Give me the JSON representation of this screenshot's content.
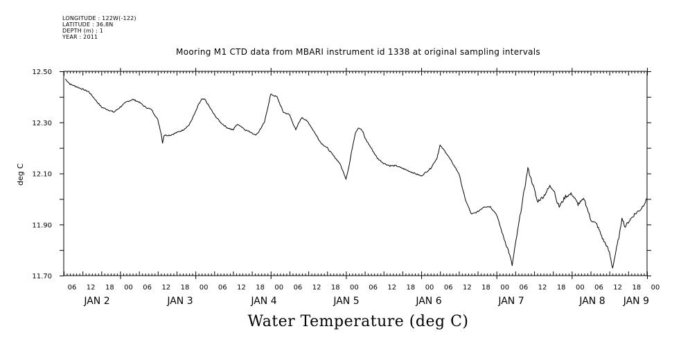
{
  "header": {
    "longitude": "LONGITUDE : 122W(-122)",
    "latitude": "LATITUDE : 36.8N",
    "depth": "DEPTH (m) : 1",
    "year": "YEAR : 2011"
  },
  "chart_data": {
    "type": "line",
    "title": "Mooring M1 CTD data from MBARI instrument id 1338 at original sampling intervals",
    "xlabel": "Water Temperature (deg C)",
    "ylabel": "deg C",
    "ylim": [
      11.7,
      12.5
    ],
    "yticks": [
      "12.50",
      "12.30",
      "12.10",
      "11.90",
      "11.70"
    ],
    "xlim_hours": [
      0,
      186
    ],
    "hour_ticks": [
      "06",
      "12",
      "18",
      "00",
      "06",
      "12",
      "18",
      "00",
      "06",
      "12",
      "18",
      "00",
      "06",
      "12",
      "18",
      "00",
      "06",
      "12",
      "18",
      "00",
      "06",
      "12",
      "18",
      "00",
      "06",
      "12",
      "18",
      "00",
      "06",
      "12",
      "18",
      "00"
    ],
    "day_labels": [
      "JAN 2",
      "JAN 3",
      "JAN 4",
      "JAN 5",
      "JAN 6",
      "JAN 7",
      "JAN 8",
      "JAN 9"
    ],
    "series": [
      {
        "x": [
          0.5,
          2,
          4,
          6,
          8,
          10,
          12,
          14,
          16,
          18,
          20,
          22,
          24,
          26,
          28,
          29,
          30,
          31,
          31.5,
          32,
          33,
          34,
          36,
          38,
          40,
          42,
          43,
          44,
          45,
          46,
          48,
          50,
          52,
          54,
          55,
          56,
          58,
          60,
          61,
          62,
          64,
          66,
          68,
          70,
          72,
          73,
          74,
          75,
          76,
          78,
          80,
          82,
          84,
          86,
          88,
          90,
          91,
          92,
          93,
          94,
          95,
          95.5,
          96,
          98,
          100,
          102,
          104,
          106,
          108,
          110,
          112,
          114,
          115,
          116,
          117,
          117.5,
          118,
          119,
          120,
          122,
          124,
          126,
          128,
          130,
          132,
          134,
          136,
          138,
          140,
          142,
          143,
          144,
          146,
          148,
          150,
          151,
          152,
          153,
          154,
          155,
          156,
          156.5,
          157,
          158,
          159,
          160,
          162,
          163,
          164,
          166,
          168,
          170,
          172,
          173,
          174,
          175,
          176,
          177,
          177.5,
          178,
          179,
          180,
          182,
          184,
          186
        ],
        "y": [
          12.47,
          12.45,
          12.44,
          12.43,
          12.42,
          12.39,
          12.36,
          12.35,
          12.34,
          12.36,
          12.38,
          12.39,
          12.38,
          12.36,
          12.35,
          12.33,
          12.31,
          12.26,
          12.22,
          12.25,
          12.25,
          12.25,
          12.26,
          12.27,
          12.29,
          12.34,
          12.37,
          12.39,
          12.39,
          12.37,
          12.33,
          12.3,
          12.28,
          12.27,
          12.29,
          12.29,
          12.27,
          12.26,
          12.25,
          12.26,
          12.3,
          12.41,
          12.4,
          12.34,
          12.33,
          12.3,
          12.27,
          12.3,
          12.32,
          12.3,
          12.26,
          12.22,
          12.2,
          12.17,
          12.14,
          12.08,
          12.13,
          12.2,
          12.26,
          12.28,
          12.27,
          12.26,
          12.24,
          12.2,
          12.16,
          12.14,
          12.13,
          12.13,
          12.12,
          12.11,
          12.1,
          12.09,
          12.1,
          12.11,
          12.12,
          12.13,
          12.14,
          12.16,
          12.21,
          12.18,
          12.14,
          12.1,
          12.0,
          11.94,
          11.95,
          11.97,
          11.97,
          11.94,
          11.86,
          11.79,
          11.74,
          11.82,
          11.97,
          12.12,
          12.04,
          11.99,
          12.0,
          12.01,
          12.03,
          12.05,
          12.04,
          12.03,
          12.0,
          11.97,
          11.99,
          12.01,
          12.02,
          12.0,
          11.98,
          12.0,
          11.92,
          11.9,
          11.84,
          11.82,
          11.79,
          11.73,
          11.79,
          11.85,
          11.88,
          11.93,
          11.89,
          11.91,
          11.94,
          11.96,
          12.0
        ]
      }
    ]
  }
}
